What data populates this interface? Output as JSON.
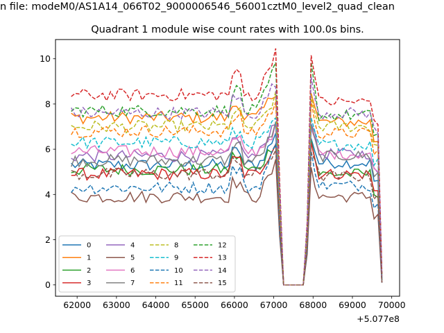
{
  "figure": {
    "suptitle": "n file: modeM0/AS1A14_066T02_9000006546_56001cztM0_level2_quad_clean"
  },
  "chart_data": {
    "type": "line",
    "title": "Quadrant 1 module wise count rates with 100.0s bins.",
    "xlabel": "",
    "ylabel": "",
    "x_offset_label": "+5.077e8",
    "xlim": [
      61450,
      70200
    ],
    "ylim": [
      -0.5,
      10.85
    ],
    "xticks": [
      62000,
      63000,
      64000,
      65000,
      66000,
      67000,
      68000,
      69000,
      70000
    ],
    "yticks": [
      0,
      2,
      4,
      6,
      8,
      10
    ],
    "grid": false,
    "legend": {
      "placement": "lower-left",
      "columns": 4
    },
    "segment_a": {
      "x_start": 61850,
      "x_end": 67050,
      "step": 100
    },
    "drop_x": [
      67150,
      67250
    ],
    "gap_x": [
      67250,
      67350,
      67450,
      67550,
      67650,
      67750
    ],
    "rise_x": [
      67850
    ],
    "segment_b": {
      "x_start": 67950,
      "x_end": 69650,
      "step": 100
    },
    "tail_x": [
      69750
    ],
    "series": [
      {
        "name": "0",
        "color": "#1f77b4",
        "dash": "solid",
        "level": 5.3,
        "peak": 6.6,
        "post": 5.4,
        "tail": 0.2
      },
      {
        "name": "1",
        "color": "#ff7f0e",
        "dash": "solid",
        "level": 7.4,
        "peak": 8.6,
        "post": 7.2,
        "tail": 0.4
      },
      {
        "name": "2",
        "color": "#2ca02c",
        "dash": "solid",
        "level": 5.1,
        "peak": 6.4,
        "post": 4.9,
        "tail": 0.2
      },
      {
        "name": "3",
        "color": "#d62728",
        "dash": "solid",
        "level": 4.9,
        "peak": 6.3,
        "post": 4.9,
        "tail": 0.1
      },
      {
        "name": "4",
        "color": "#9467bd",
        "dash": "solid",
        "level": 5.7,
        "peak": 7.3,
        "post": 5.8,
        "tail": 0.3
      },
      {
        "name": "5",
        "color": "#8c564b",
        "dash": "solid",
        "level": 3.9,
        "peak": 5.3,
        "post": 3.9,
        "tail": 0.1
      },
      {
        "name": "6",
        "color": "#e377c2",
        "dash": "solid",
        "level": 5.9,
        "peak": 6.9,
        "post": 5.8,
        "tail": 0.3
      },
      {
        "name": "7",
        "color": "#7f7f7f",
        "dash": "solid",
        "level": 5.5,
        "peak": 7.0,
        "post": 5.7,
        "tail": 0.2
      },
      {
        "name": "8",
        "color": "#bcbd22",
        "dash": "dashed",
        "level": 7.0,
        "peak": 8.3,
        "post": 7.0,
        "tail": 0.4
      },
      {
        "name": "9",
        "color": "#17becf",
        "dash": "dashed",
        "level": 6.3,
        "peak": 7.2,
        "post": 6.2,
        "tail": 0.3
      },
      {
        "name": "10",
        "color": "#1f77b4",
        "dash": "dashed",
        "level": 4.3,
        "peak": 6.1,
        "post": 4.4,
        "tail": 0.1
      },
      {
        "name": "11",
        "color": "#ff7f0e",
        "dash": "dashed",
        "level": 6.8,
        "peak": 8.0,
        "post": 6.7,
        "tail": 0.4
      },
      {
        "name": "12",
        "color": "#2ca02c",
        "dash": "dashed",
        "level": 7.7,
        "peak": 9.7,
        "post": 7.5,
        "tail": 0.5
      },
      {
        "name": "13",
        "color": "#d62728",
        "dash": "dashed",
        "level": 8.4,
        "peak": 10.4,
        "post": 8.1,
        "tail": 0.5
      },
      {
        "name": "14",
        "color": "#9467bd",
        "dash": "dashed",
        "level": 7.6,
        "peak": 9.0,
        "post": 7.6,
        "tail": 0.4
      },
      {
        "name": "15",
        "color": "#8c564b",
        "dash": "dashed",
        "level": 4.9,
        "peak": 6.0,
        "post": 4.8,
        "tail": 0.1
      }
    ]
  }
}
